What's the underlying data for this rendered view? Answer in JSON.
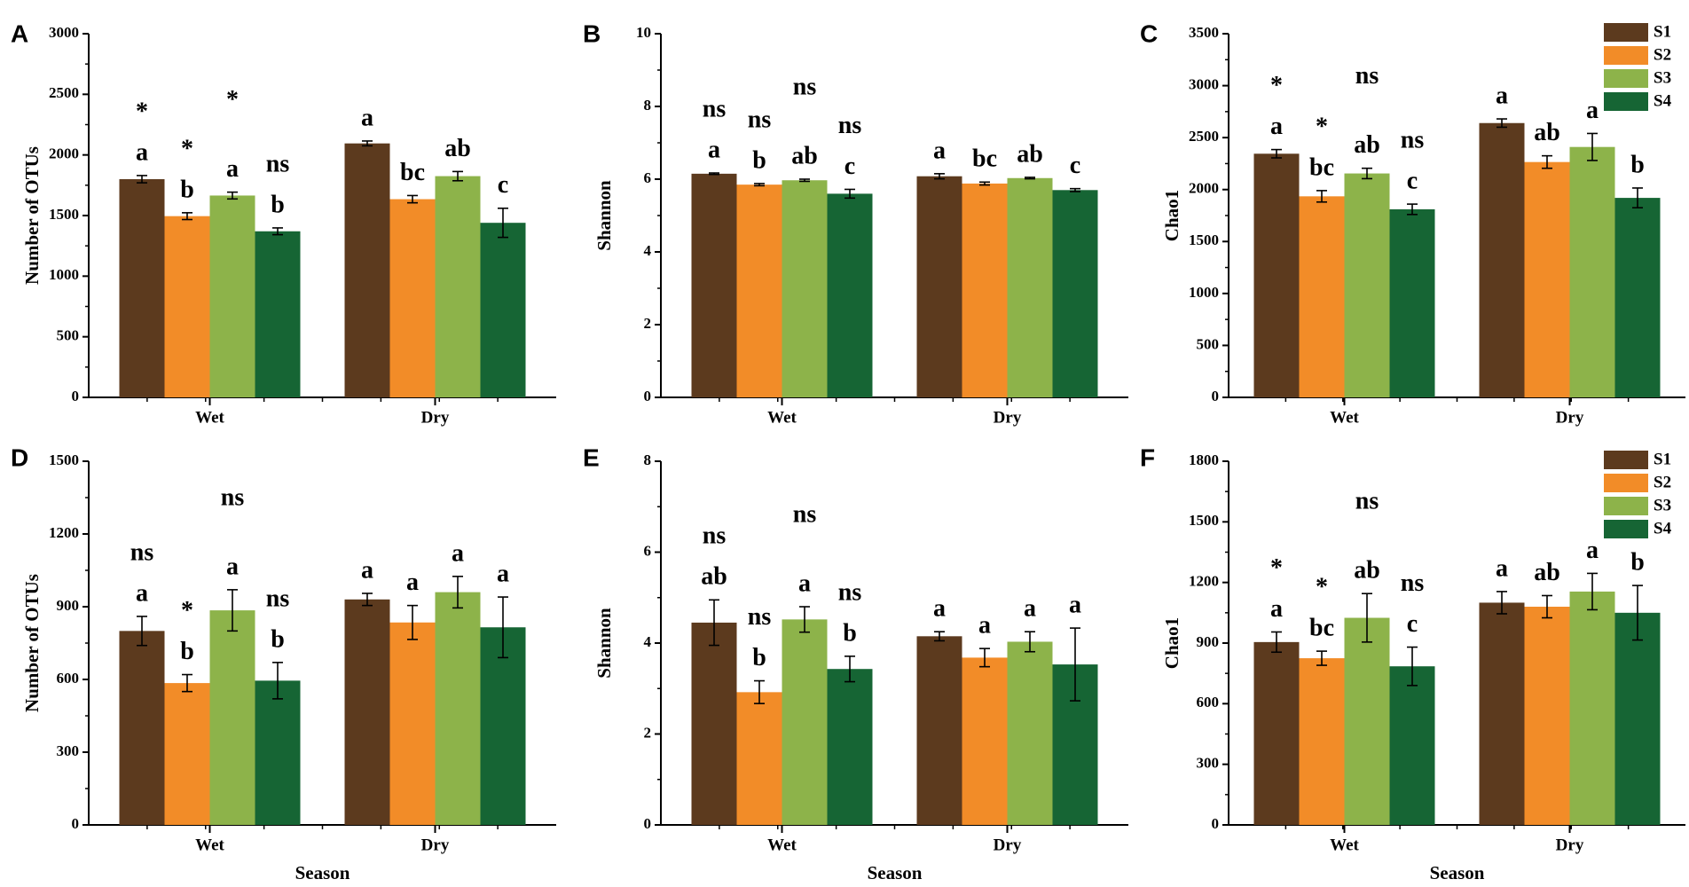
{
  "colors": {
    "S1": "#5c3a1e",
    "S2": "#f28c28",
    "S3": "#8db34a",
    "S4": "#166534"
  },
  "chart_data": [
    {
      "panel": "A",
      "type": "bar",
      "ylabel": "Number of OTUs",
      "xlabel": "",
      "ylim": [
        0,
        3000
      ],
      "yticks": [
        0,
        500,
        1000,
        1500,
        2000,
        2500,
        3000
      ],
      "categories": [
        "Wet",
        "Dry"
      ],
      "legend": false,
      "series": [
        {
          "name": "S1",
          "values": [
            1800,
            2095
          ],
          "errors": [
            30,
            20
          ],
          "letters": [
            "a",
            "a"
          ],
          "sig": [
            "*",
            ""
          ]
        },
        {
          "name": "S2",
          "values": [
            1495,
            1635
          ],
          "errors": [
            28,
            30
          ],
          "letters": [
            "b",
            "bc"
          ],
          "sig": [
            "*",
            ""
          ]
        },
        {
          "name": "S3",
          "values": [
            1665,
            1825
          ],
          "errors": [
            28,
            38
          ],
          "letters": [
            "a",
            "ab"
          ],
          "sig": [
            "*",
            ""
          ]
        },
        {
          "name": "S4",
          "values": [
            1370,
            1440
          ],
          "errors": [
            28,
            120
          ],
          "letters": [
            "b",
            "c"
          ],
          "sig": [
            "ns",
            ""
          ]
        }
      ]
    },
    {
      "panel": "B",
      "type": "bar",
      "ylabel": "Shannon",
      "xlabel": "",
      "ylim": [
        0,
        10
      ],
      "yticks": [
        0,
        2,
        4,
        6,
        8,
        10
      ],
      "categories": [
        "Wet",
        "Dry"
      ],
      "legend": false,
      "series": [
        {
          "name": "S1",
          "values": [
            6.15,
            6.08
          ],
          "errors": [
            0.02,
            0.07
          ],
          "letters": [
            "a",
            "a"
          ],
          "sig": [
            "ns",
            ""
          ]
        },
        {
          "name": "S2",
          "values": [
            5.85,
            5.88
          ],
          "errors": [
            0.03,
            0.04
          ],
          "letters": [
            "b",
            "bc"
          ],
          "sig": [
            "ns",
            ""
          ]
        },
        {
          "name": "S3",
          "values": [
            5.97,
            6.03
          ],
          "errors": [
            0.03,
            0.02
          ],
          "letters": [
            "ab",
            "ab"
          ],
          "sig": [
            "ns",
            ""
          ]
        },
        {
          "name": "S4",
          "values": [
            5.6,
            5.7
          ],
          "errors": [
            0.12,
            0.04
          ],
          "letters": [
            "c",
            "c"
          ],
          "sig": [
            "ns",
            ""
          ]
        }
      ]
    },
    {
      "panel": "C",
      "type": "bar",
      "ylabel": "Chao1",
      "xlabel": "",
      "ylim": [
        0,
        3500
      ],
      "yticks": [
        0,
        500,
        1000,
        1500,
        2000,
        2500,
        3000,
        3500
      ],
      "categories": [
        "Wet",
        "Dry"
      ],
      "legend": true,
      "series": [
        {
          "name": "S1",
          "values": [
            2345,
            2640
          ],
          "errors": [
            40,
            40
          ],
          "letters": [
            "a",
            "a"
          ],
          "sig": [
            "*",
            ""
          ]
        },
        {
          "name": "S2",
          "values": [
            1935,
            2265
          ],
          "errors": [
            55,
            60
          ],
          "letters": [
            "bc",
            "ab"
          ],
          "sig": [
            "*",
            ""
          ]
        },
        {
          "name": "S3",
          "values": [
            2155,
            2410
          ],
          "errors": [
            50,
            130
          ],
          "letters": [
            "ab",
            "a"
          ],
          "sig": [
            "ns",
            ""
          ]
        },
        {
          "name": "S4",
          "values": [
            1810,
            1920
          ],
          "errors": [
            50,
            95
          ],
          "letters": [
            "c",
            "b"
          ],
          "sig": [
            "ns",
            ""
          ]
        }
      ]
    },
    {
      "panel": "D",
      "type": "bar",
      "ylabel": "Number of OTUs",
      "xlabel": "Season",
      "ylim": [
        0,
        1500
      ],
      "yticks": [
        0,
        300,
        600,
        900,
        1200,
        1500
      ],
      "categories": [
        "Wet",
        "Dry"
      ],
      "legend": false,
      "series": [
        {
          "name": "S1",
          "values": [
            800,
            930
          ],
          "errors": [
            60,
            25
          ],
          "letters": [
            "a",
            "a"
          ],
          "sig": [
            "ns",
            ""
          ]
        },
        {
          "name": "S2",
          "values": [
            585,
            835
          ],
          "errors": [
            35,
            70
          ],
          "letters": [
            "b",
            "a"
          ],
          "sig": [
            "*",
            ""
          ]
        },
        {
          "name": "S3",
          "values": [
            885,
            960
          ],
          "errors": [
            85,
            65
          ],
          "letters": [
            "a",
            "a"
          ],
          "sig": [
            "ns",
            ""
          ]
        },
        {
          "name": "S4",
          "values": [
            595,
            815
          ],
          "errors": [
            75,
            125
          ],
          "letters": [
            "b",
            "a"
          ],
          "sig": [
            "ns",
            ""
          ]
        }
      ]
    },
    {
      "panel": "E",
      "type": "bar",
      "ylabel": "Shannon",
      "xlabel": "Season",
      "ylim": [
        0,
        8
      ],
      "yticks": [
        0,
        2,
        4,
        6,
        8
      ],
      "categories": [
        "Wet",
        "Dry"
      ],
      "legend": false,
      "series": [
        {
          "name": "S1",
          "values": [
            4.45,
            4.15
          ],
          "errors": [
            0.5,
            0.1
          ],
          "letters": [
            "ab",
            "a"
          ],
          "sig": [
            "ns",
            ""
          ]
        },
        {
          "name": "S2",
          "values": [
            2.92,
            3.68
          ],
          "errors": [
            0.25,
            0.2
          ],
          "letters": [
            "b",
            "a"
          ],
          "sig": [
            "ns",
            ""
          ]
        },
        {
          "name": "S3",
          "values": [
            4.52,
            4.03
          ],
          "errors": [
            0.28,
            0.22
          ],
          "letters": [
            "a",
            "a"
          ],
          "sig": [
            "ns",
            ""
          ]
        },
        {
          "name": "S4",
          "values": [
            3.43,
            3.53
          ],
          "errors": [
            0.28,
            0.8
          ],
          "letters": [
            "b",
            "a"
          ],
          "sig": [
            "ns",
            ""
          ]
        }
      ]
    },
    {
      "panel": "F",
      "type": "bar",
      "ylabel": "Chao1",
      "xlabel": "Season",
      "ylim": [
        0,
        1800
      ],
      "yticks": [
        0,
        300,
        600,
        900,
        1200,
        1500,
        1800
      ],
      "categories": [
        "Wet",
        "Dry"
      ],
      "legend": true,
      "series": [
        {
          "name": "S1",
          "values": [
            905,
            1100
          ],
          "errors": [
            50,
            55
          ],
          "letters": [
            "a",
            "a"
          ],
          "sig": [
            "*",
            ""
          ]
        },
        {
          "name": "S2",
          "values": [
            825,
            1080
          ],
          "errors": [
            35,
            55
          ],
          "letters": [
            "bc",
            "ab"
          ],
          "sig": [
            "*",
            ""
          ]
        },
        {
          "name": "S3",
          "values": [
            1025,
            1155
          ],
          "errors": [
            120,
            90
          ],
          "letters": [
            "ab",
            "a"
          ],
          "sig": [
            "ns",
            ""
          ]
        },
        {
          "name": "S4",
          "values": [
            785,
            1050
          ],
          "errors": [
            95,
            135
          ],
          "letters": [
            "c",
            "b"
          ],
          "sig": [
            "ns",
            ""
          ]
        }
      ]
    }
  ]
}
